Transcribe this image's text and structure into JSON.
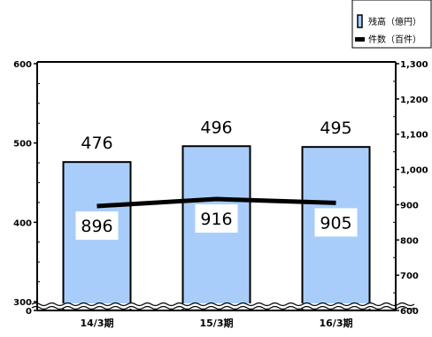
{
  "chart_data": {
    "type": "bar",
    "categories": [
      "14/3期",
      "15/3期",
      "16/3期"
    ],
    "series": [
      {
        "name": "残高（億円）",
        "type": "bar",
        "axis": "left",
        "values": [
          476,
          496,
          495
        ],
        "color": "#a9cdfb"
      },
      {
        "name": "件数（百件）",
        "type": "line",
        "axis": "right",
        "values": [
          896,
          916,
          905
        ],
        "color": "#000000"
      }
    ],
    "left_axis": {
      "ylim": [
        300,
        600
      ],
      "ticks": [
        0,
        300,
        400,
        500,
        600
      ],
      "tick_labels": [
        "0",
        "300",
        "400",
        "500",
        "600"
      ],
      "broken": true
    },
    "right_axis": {
      "ylim": [
        600,
        1300
      ],
      "ticks": [
        600,
        700,
        800,
        900,
        1000,
        1100,
        1200,
        1300
      ],
      "tick_labels": [
        "600",
        "700",
        "800",
        "900",
        "1,000",
        "1,100",
        "1,200",
        "1,300"
      ]
    },
    "legend": {
      "position": "top-right",
      "entries": [
        "残高（億円）",
        "件数（百件）"
      ]
    },
    "grid": false,
    "title": "",
    "xlabel": "",
    "ylabel": ""
  }
}
